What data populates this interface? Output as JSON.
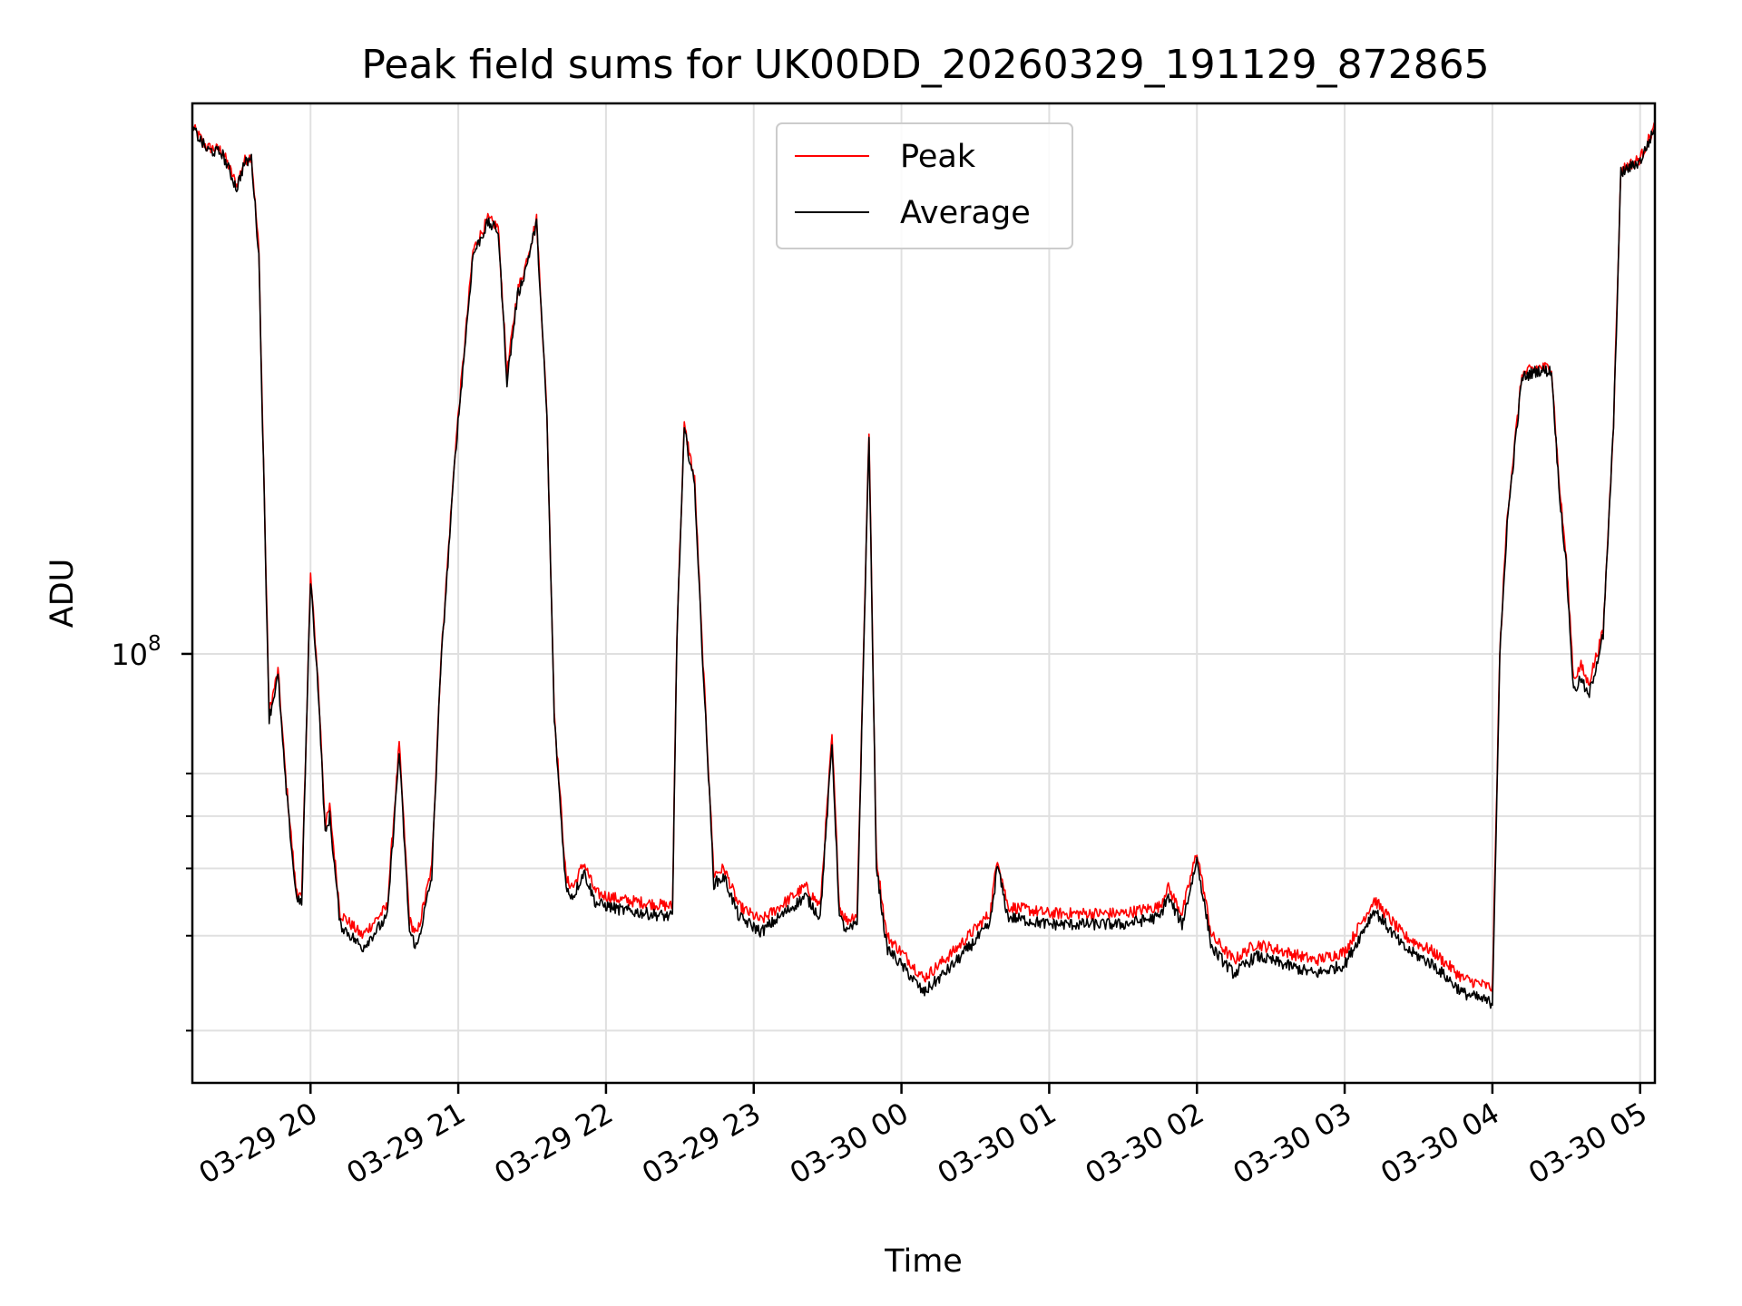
{
  "chart_data": {
    "type": "line",
    "title": "Peak field sums for UK00DD_20260329_191129_872865",
    "xlabel": "Time",
    "ylabel": "ADU",
    "yscale": "log",
    "ylim": [
      16000000,
      1050000000
    ],
    "xlim_hours": [
      19.2,
      29.1
    ],
    "grid": true,
    "legend_location": "upper center",
    "x_ticks": [
      {
        "hour": 20,
        "label": "03-29 20"
      },
      {
        "hour": 21,
        "label": "03-29 21"
      },
      {
        "hour": 22,
        "label": "03-29 22"
      },
      {
        "hour": 23,
        "label": "03-29 23"
      },
      {
        "hour": 24,
        "label": "03-30 00"
      },
      {
        "hour": 25,
        "label": "03-30 01"
      },
      {
        "hour": 26,
        "label": "03-30 02"
      },
      {
        "hour": 27,
        "label": "03-30 03"
      },
      {
        "hour": 28,
        "label": "03-30 04"
      },
      {
        "hour": 29,
        "label": "03-30 05"
      }
    ],
    "y_major_tick": {
      "value": 100000000,
      "base": "10",
      "exponent": "8"
    },
    "y_minor_ticks": [
      20000000,
      30000000,
      40000000,
      50000000,
      60000000
    ],
    "series": [
      {
        "name": "Peak",
        "color": "#ff0000",
        "x_hours": [
          19.2,
          19.3,
          19.4,
          19.5,
          19.55,
          19.6,
          19.65,
          19.7,
          19.72,
          19.78,
          19.83,
          19.9,
          19.94,
          20.0,
          20.05,
          20.1,
          20.13,
          20.2,
          20.35,
          20.52,
          20.6,
          20.67,
          20.72,
          20.82,
          20.88,
          20.98,
          21.1,
          21.2,
          21.27,
          21.33,
          21.4,
          21.45,
          21.53,
          21.6,
          21.65,
          21.73,
          21.78,
          21.85,
          21.93,
          22.1,
          22.45,
          22.48,
          22.53,
          22.6,
          22.65,
          22.73,
          22.8,
          22.9,
          23.05,
          23.35,
          23.45,
          23.53,
          23.58,
          23.63,
          23.7,
          23.78,
          23.83,
          23.9,
          24.05,
          24.15,
          24.35,
          24.6,
          24.65,
          24.72,
          25.0,
          25.5,
          25.75,
          25.8,
          25.9,
          26.0,
          26.1,
          26.25,
          26.4,
          26.6,
          26.8,
          27.0,
          27.2,
          27.4,
          27.6,
          27.8,
          28.0,
          28.05,
          28.1,
          28.2,
          28.3,
          28.4,
          28.45,
          28.5,
          28.55,
          28.6,
          28.65,
          28.75,
          28.82,
          28.87,
          29.0,
          29.12
        ],
        "values": [
          950000000,
          870000000,
          860000000,
          740000000,
          820000000,
          840000000,
          560000000,
          135000000,
          78000000,
          93000000,
          60000000,
          37000000,
          35000000,
          140000000,
          90000000,
          48000000,
          52000000,
          33000000,
          30000000,
          34000000,
          68000000,
          32000000,
          30000000,
          40000000,
          95000000,
          240000000,
          560000000,
          640000000,
          620000000,
          330000000,
          470000000,
          520000000,
          640000000,
          280000000,
          78000000,
          38000000,
          37000000,
          41000000,
          36000000,
          35000000,
          34000000,
          110000000,
          265000000,
          210000000,
          105000000,
          39000000,
          40000000,
          34000000,
          32000000,
          37000000,
          34000000,
          70000000,
          34000000,
          32000000,
          33000000,
          260000000,
          42000000,
          30000000,
          27000000,
          25000000,
          28000000,
          33000000,
          42000000,
          34000000,
          33000000,
          33000000,
          34000000,
          37000000,
          33000000,
          43000000,
          30000000,
          27000000,
          29000000,
          28000000,
          27000000,
          28000000,
          35000000,
          30000000,
          28000000,
          25000000,
          24000000,
          100000000,
          180000000,
          330000000,
          340000000,
          340000000,
          210000000,
          150000000,
          90000000,
          95000000,
          88000000,
          110000000,
          270000000,
          790000000,
          830000000,
          980000000
        ]
      },
      {
        "name": "Average",
        "color": "#000000",
        "x_hours": [
          19.2,
          19.3,
          19.4,
          19.5,
          19.55,
          19.6,
          19.65,
          19.7,
          19.72,
          19.78,
          19.83,
          19.9,
          19.94,
          20.0,
          20.05,
          20.1,
          20.13,
          20.2,
          20.35,
          20.52,
          20.6,
          20.67,
          20.72,
          20.82,
          20.88,
          20.98,
          21.1,
          21.2,
          21.27,
          21.33,
          21.4,
          21.45,
          21.53,
          21.6,
          21.65,
          21.73,
          21.78,
          21.85,
          21.93,
          22.1,
          22.45,
          22.48,
          22.53,
          22.6,
          22.65,
          22.73,
          22.8,
          22.9,
          23.05,
          23.35,
          23.45,
          23.53,
          23.58,
          23.63,
          23.7,
          23.78,
          23.83,
          23.9,
          24.05,
          24.15,
          24.35,
          24.6,
          24.65,
          24.72,
          25.0,
          25.5,
          25.75,
          25.8,
          25.9,
          26.0,
          26.1,
          26.25,
          26.4,
          26.6,
          26.8,
          27.0,
          27.2,
          27.4,
          27.6,
          27.8,
          28.0,
          28.05,
          28.1,
          28.2,
          28.3,
          28.4,
          28.45,
          28.5,
          28.55,
          28.6,
          28.65,
          28.75,
          28.82,
          28.87,
          29.0,
          29.12
        ],
        "values": [
          945000000,
          860000000,
          850000000,
          730000000,
          810000000,
          830000000,
          550000000,
          132000000,
          76000000,
          91000000,
          58000000,
          36000000,
          34000000,
          138000000,
          88000000,
          46000000,
          50000000,
          31500000,
          28500000,
          32500000,
          66000000,
          30500000,
          28500000,
          38500000,
          93000000,
          235000000,
          550000000,
          630000000,
          610000000,
          320000000,
          460000000,
          510000000,
          630000000,
          275000000,
          76000000,
          36500000,
          35500000,
          39500000,
          34500000,
          33500000,
          32500000,
          108000000,
          260000000,
          205000000,
          103000000,
          37500000,
          38500000,
          32500000,
          30500000,
          35500000,
          32500000,
          68000000,
          32500000,
          30500000,
          31500000,
          255000000,
          40500000,
          28500000,
          25500000,
          23500000,
          26500000,
          31500000,
          40500000,
          32500000,
          31500000,
          31500000,
          32500000,
          35500000,
          31500000,
          41500000,
          28500000,
          25500000,
          27500000,
          26500000,
          25500000,
          26500000,
          33500000,
          28500000,
          26500000,
          23500000,
          22500000,
          98000000,
          175000000,
          325000000,
          335000000,
          335000000,
          205000000,
          145000000,
          85000000,
          90000000,
          83000000,
          108000000,
          265000000,
          780000000,
          820000000,
          970000000
        ]
      }
    ]
  }
}
